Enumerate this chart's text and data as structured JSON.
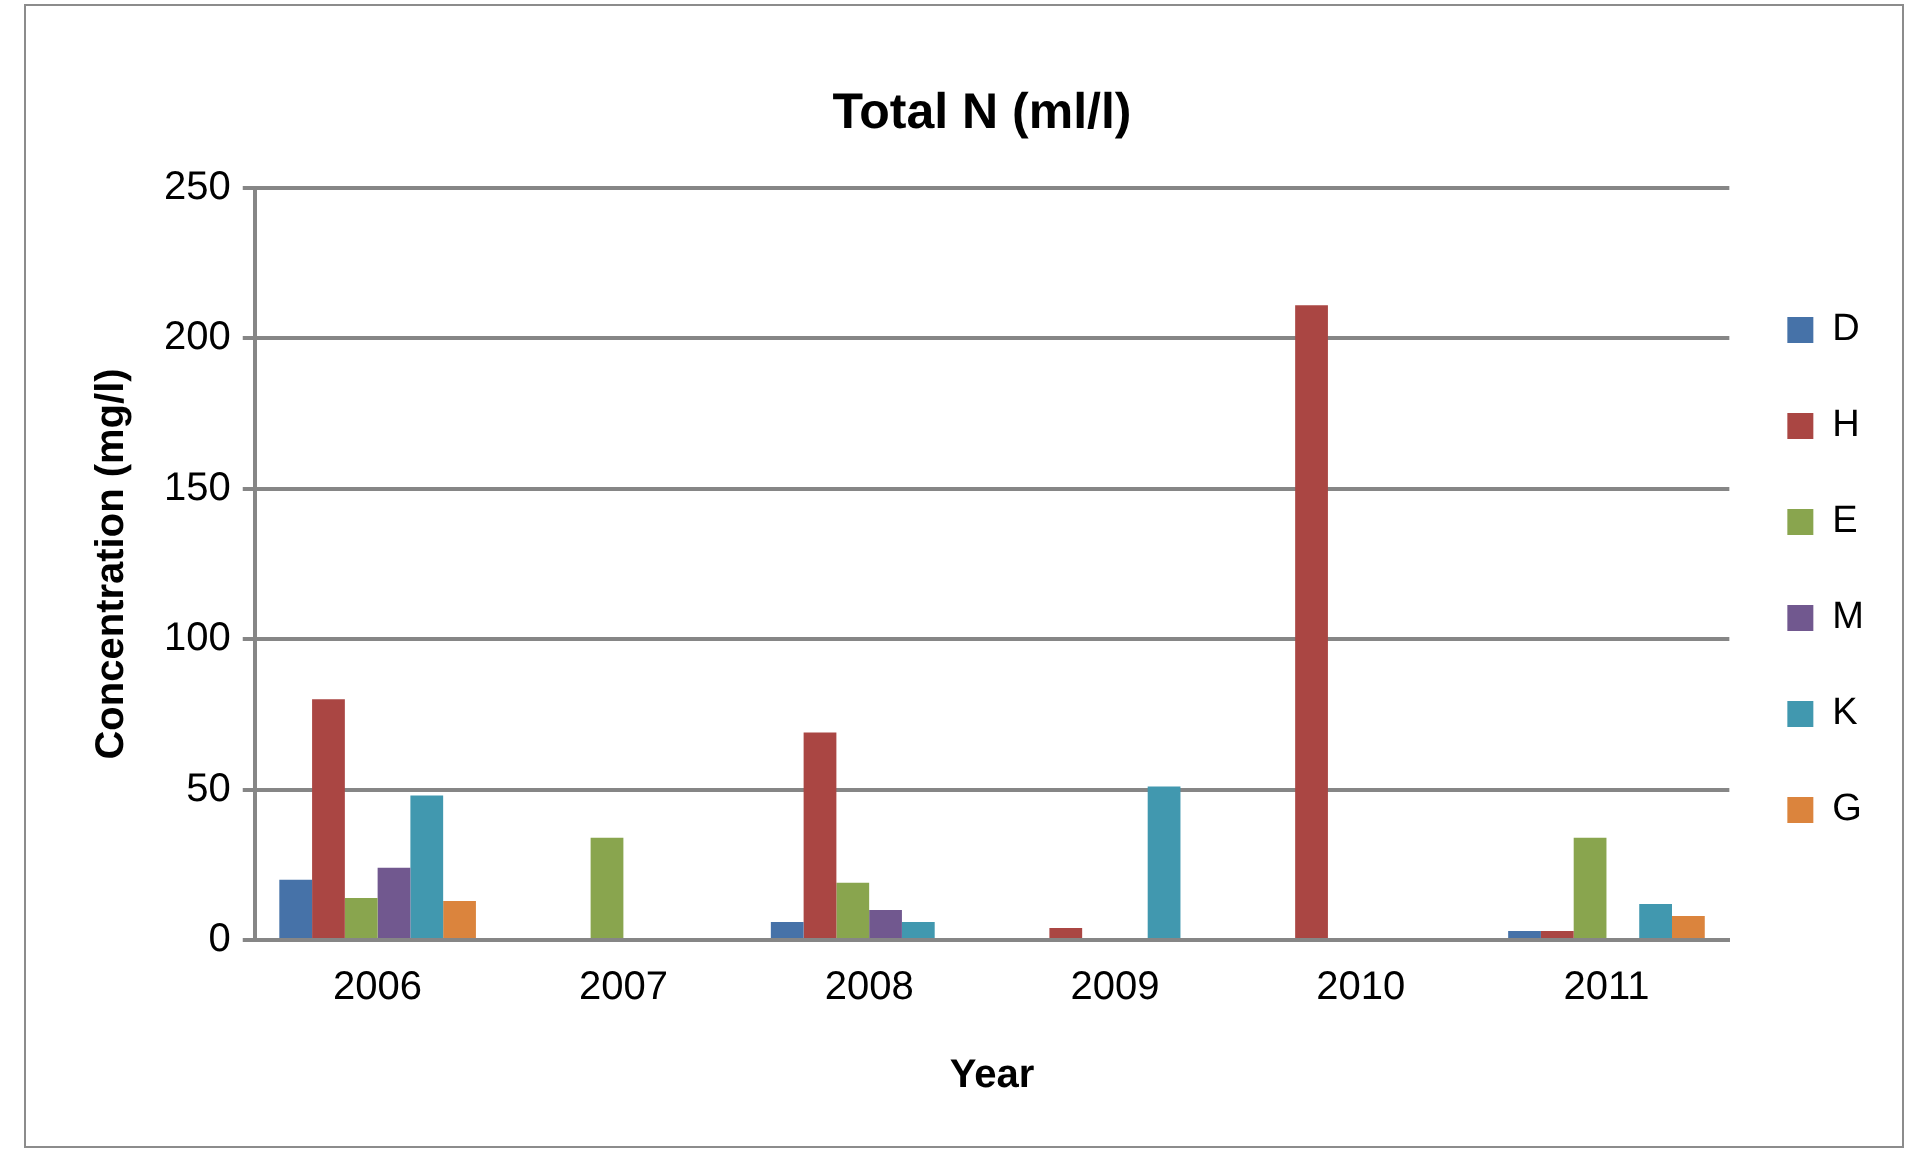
{
  "chart_data": {
    "type": "bar",
    "title": "Total N (ml/l)",
    "xlabel": "Year",
    "ylabel": "Concentration (mg/l)",
    "categories": [
      "2006",
      "2007",
      "2008",
      "2009",
      "2010",
      "2011"
    ],
    "series": [
      {
        "name": "D",
        "color": "#4672a8",
        "values": [
          20,
          null,
          6,
          null,
          null,
          3
        ]
      },
      {
        "name": "H",
        "color": "#aa4643",
        "values": [
          80,
          null,
          69,
          4,
          211,
          3
        ]
      },
      {
        "name": "E",
        "color": "#89a54e",
        "values": [
          14,
          34,
          19,
          null,
          null,
          34
        ]
      },
      {
        "name": "M",
        "color": "#71588f",
        "values": [
          24,
          null,
          10,
          null,
          null,
          null
        ]
      },
      {
        "name": "K",
        "color": "#4198af",
        "values": [
          48,
          null,
          6,
          51,
          null,
          12
        ]
      },
      {
        "name": "G",
        "color": "#db843d",
        "values": [
          13,
          null,
          null,
          null,
          null,
          8
        ]
      }
    ],
    "ylim": [
      0,
      250
    ],
    "yticks": [
      0,
      50,
      100,
      150,
      200,
      250
    ],
    "grid": "y",
    "legend": "right"
  }
}
